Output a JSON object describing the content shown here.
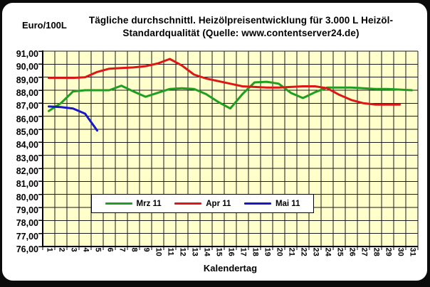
{
  "chart_data": {
    "type": "line",
    "title_line1": "Tägliche durchschnittl. Heizölpreisentwicklung für 3.000 L Heizöl-",
    "title_line2": "Standardqualität (Quelle: www.contentserver24.de)",
    "y_axis_label": "Euro/100L",
    "x_axis_label": "Kalendertag",
    "categories": [
      "1",
      "2",
      "3",
      "4",
      "5",
      "6",
      "7",
      "8",
      "9",
      "10",
      "11",
      "12",
      "13",
      "14",
      "15",
      "16",
      "17",
      "18",
      "19",
      "20",
      "21",
      "22",
      "23",
      "24",
      "25",
      "26",
      "27",
      "28",
      "29",
      "30",
      "31"
    ],
    "y_tick_labels": [
      "91,00",
      "90,00",
      "89,00",
      "88,00",
      "87,00",
      "86,00",
      "85,00",
      "84,00",
      "83,00",
      "82,00",
      "81,00",
      "80,00",
      "79,00",
      "78,00",
      "77,00",
      "76,00"
    ],
    "ylim": [
      76,
      91
    ],
    "grid": true,
    "legend_position": "bottom-center-inside",
    "plot_bg_color": "#ffffcc",
    "series": [
      {
        "name": "Mrz 11",
        "color": "#1f9e1f",
        "values": [
          86.4,
          87.0,
          87.9,
          88.0,
          88.0,
          88.0,
          88.35,
          87.9,
          87.5,
          87.8,
          88.1,
          88.15,
          88.1,
          87.7,
          87.1,
          86.6,
          87.7,
          88.6,
          88.65,
          88.5,
          87.8,
          87.4,
          87.85,
          88.2,
          88.2,
          88.2,
          88.15,
          88.1,
          88.1,
          88.05,
          88.0
        ]
      },
      {
        "name": "Apr 11",
        "color": "#dd1616",
        "values": [
          88.95,
          88.95,
          88.95,
          89.0,
          89.4,
          89.65,
          89.7,
          89.75,
          89.85,
          90.05,
          90.4,
          89.9,
          89.2,
          88.9,
          88.7,
          88.5,
          88.3,
          88.25,
          88.2,
          88.2,
          88.25,
          88.3,
          88.3,
          88.15,
          87.65,
          87.25,
          87.0,
          86.9,
          86.9,
          86.9
        ]
      },
      {
        "name": "Mai 11",
        "color": "#1818c8",
        "values": [
          86.75,
          86.7,
          86.6,
          86.2,
          84.9
        ]
      }
    ]
  }
}
